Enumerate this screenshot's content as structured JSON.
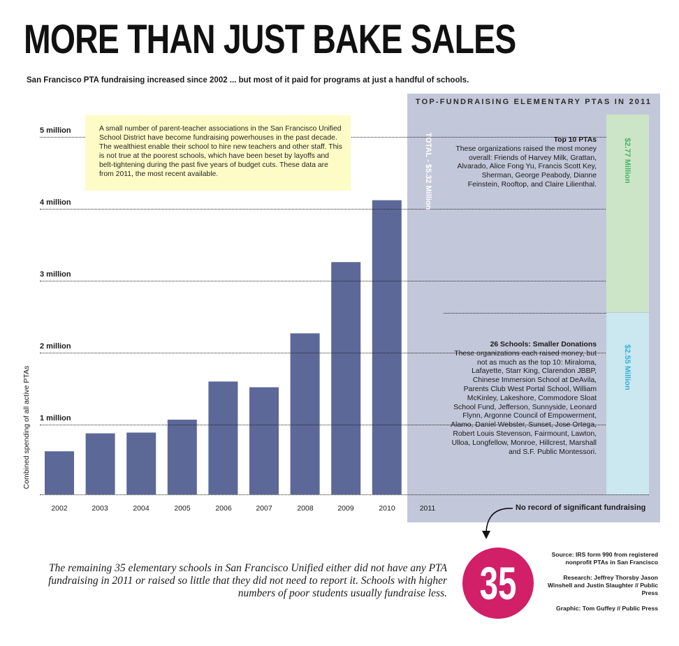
{
  "title": "MORE THAN JUST BAKE SALES",
  "subtitle": "San Francisco PTA fundraising increased since 2002 ... but most of it paid for programs at just a handful of schools.",
  "note": "A small number of parent-teacher associations in the San Francisco Unified School District have become fundraising powerhouses in the past decade. The wealthiest enable their school to hire new teachers and other staff. This is not true at the poorest schools, which have been beset by layoffs and belt-tightening during the past five years of budget cuts. These data are from 2011, the most recent available.",
  "panel": {
    "title": "TOP-FUNDRAISING ELEMENTARY PTAS IN 2011",
    "total_label": "TOTAL - $5.32 Million",
    "top10": {
      "heading": "Top 10 PTAs",
      "text": "These organizations raised the most money overall: Friends of Harvey Milk, Grattan, Alvarado, Alice Fong Yu, Francis Scott Key, Sherman, George Peabody, Dianne Feinstein, Rooftop, and Claire Lilienthal.",
      "amount": "$2.77 Million"
    },
    "small26": {
      "heading": "26 Schools: Smaller Donations",
      "text": "These organizations each raised money, but not as much as the top 10: Miraloma, Lafayette, Starr King, Clarendon JBBP, Chinese Immersion School at DeAvila, Parents Club West Portal School, William McKinley, Lakeshore, Commodore Sloat School Fund, Jefferson, Sunnyside, Leonard Flynn, Argonne Council of Empowerment, Alamo, Daniel Webster, Sunset, Jose Ortega, Robert Louis Stevenson, Fairmount, Lawton, Ulloa, Longfellow, Monroe, Hillcrest, Marshall and S.F. Public Montessori.",
      "amount": "$2.55 Million"
    },
    "no_record": "No record of significant fundraising"
  },
  "remaining": {
    "number": "35",
    "text": "The remaining 35 elementary schools in San Francisco Unified either did not have any PTA fundraising in 2011 or raised so little that they did not need to report it. Schools with higher numbers of poor students usually fundraise less."
  },
  "credits": {
    "source": "Source: IRS form 990 from registered nonprofit PTAs in San Francisco",
    "research": "Research: Jeffrey Thorsby Jason Winshell and Justin Slaughter // Public Press",
    "graphic": "Graphic: Tom Guffey // Public Press"
  },
  "colors": {
    "bar": "#5c6898",
    "panel": "#c2c7d9",
    "note": "#fefcc6",
    "top10_box": "#cce5c7",
    "top10_text": "#47b36a",
    "small_box": "#cbe7ef",
    "small_text": "#38b1d6",
    "circle": "#d11f68"
  },
  "chart_data": {
    "type": "bar",
    "ylabel": "Combined spending of all active PTAs",
    "ylim": [
      0,
      5200000
    ],
    "yticks": [
      {
        "value": 1000000,
        "label": "1 million"
      },
      {
        "value": 2000000,
        "label": "2 million"
      },
      {
        "value": 3000000,
        "label": "3 million"
      },
      {
        "value": 4000000,
        "label": "4 million"
      },
      {
        "value": 5000000,
        "label": "5 million"
      }
    ],
    "categories": [
      "2002",
      "2003",
      "2004",
      "2005",
      "2006",
      "2007",
      "2008",
      "2009",
      "2010",
      "2011"
    ],
    "values": [
      600000,
      850000,
      860000,
      1040000,
      1570000,
      1490000,
      2240000,
      3230000,
      4090000,
      5320000
    ],
    "grid": true,
    "legend": "none"
  }
}
